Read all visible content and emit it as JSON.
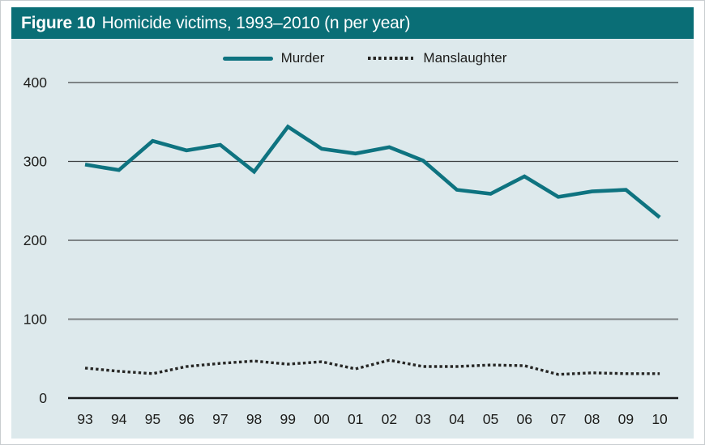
{
  "figure": {
    "label": "Figure 10",
    "title": "Homicide victims, 1993–2010 (n per year)"
  },
  "colors": {
    "header_bar": "#0a6e76",
    "panel_background": "#dde9ec",
    "murder_line": "#0e7380",
    "manslaughter_line": "#262624",
    "gridline_gray": "#7e8486",
    "gridline_300": "#3c3f41",
    "axis_baseline": "#17191a",
    "text_dark": "#1d1d1b"
  },
  "chart_data": {
    "type": "line",
    "title": "Figure 10 Homicide victims, 1993–2010 (n per year)",
    "categories": [
      "93",
      "94",
      "95",
      "96",
      "97",
      "98",
      "99",
      "00",
      "01",
      "02",
      "03",
      "04",
      "05",
      "06",
      "07",
      "08",
      "09",
      "10"
    ],
    "series": [
      {
        "name": "Murder",
        "style": "solid",
        "color": "#0e7380",
        "values": [
          296,
          289,
          326,
          314,
          321,
          287,
          344,
          316,
          310,
          318,
          301,
          264,
          259,
          281,
          255,
          262,
          264,
          229
        ]
      },
      {
        "name": "Manslaughter",
        "style": "dotted",
        "color": "#262624",
        "values": [
          38,
          34,
          31,
          40,
          44,
          47,
          43,
          46,
          37,
          48,
          40,
          40,
          42,
          41,
          30,
          32,
          31,
          31
        ]
      }
    ],
    "xlabel": "",
    "ylabel": "",
    "ylim": [
      0,
      400
    ],
    "yticks": [
      0,
      100,
      200,
      300,
      400
    ],
    "grid": true,
    "legend_position": "top-center"
  }
}
